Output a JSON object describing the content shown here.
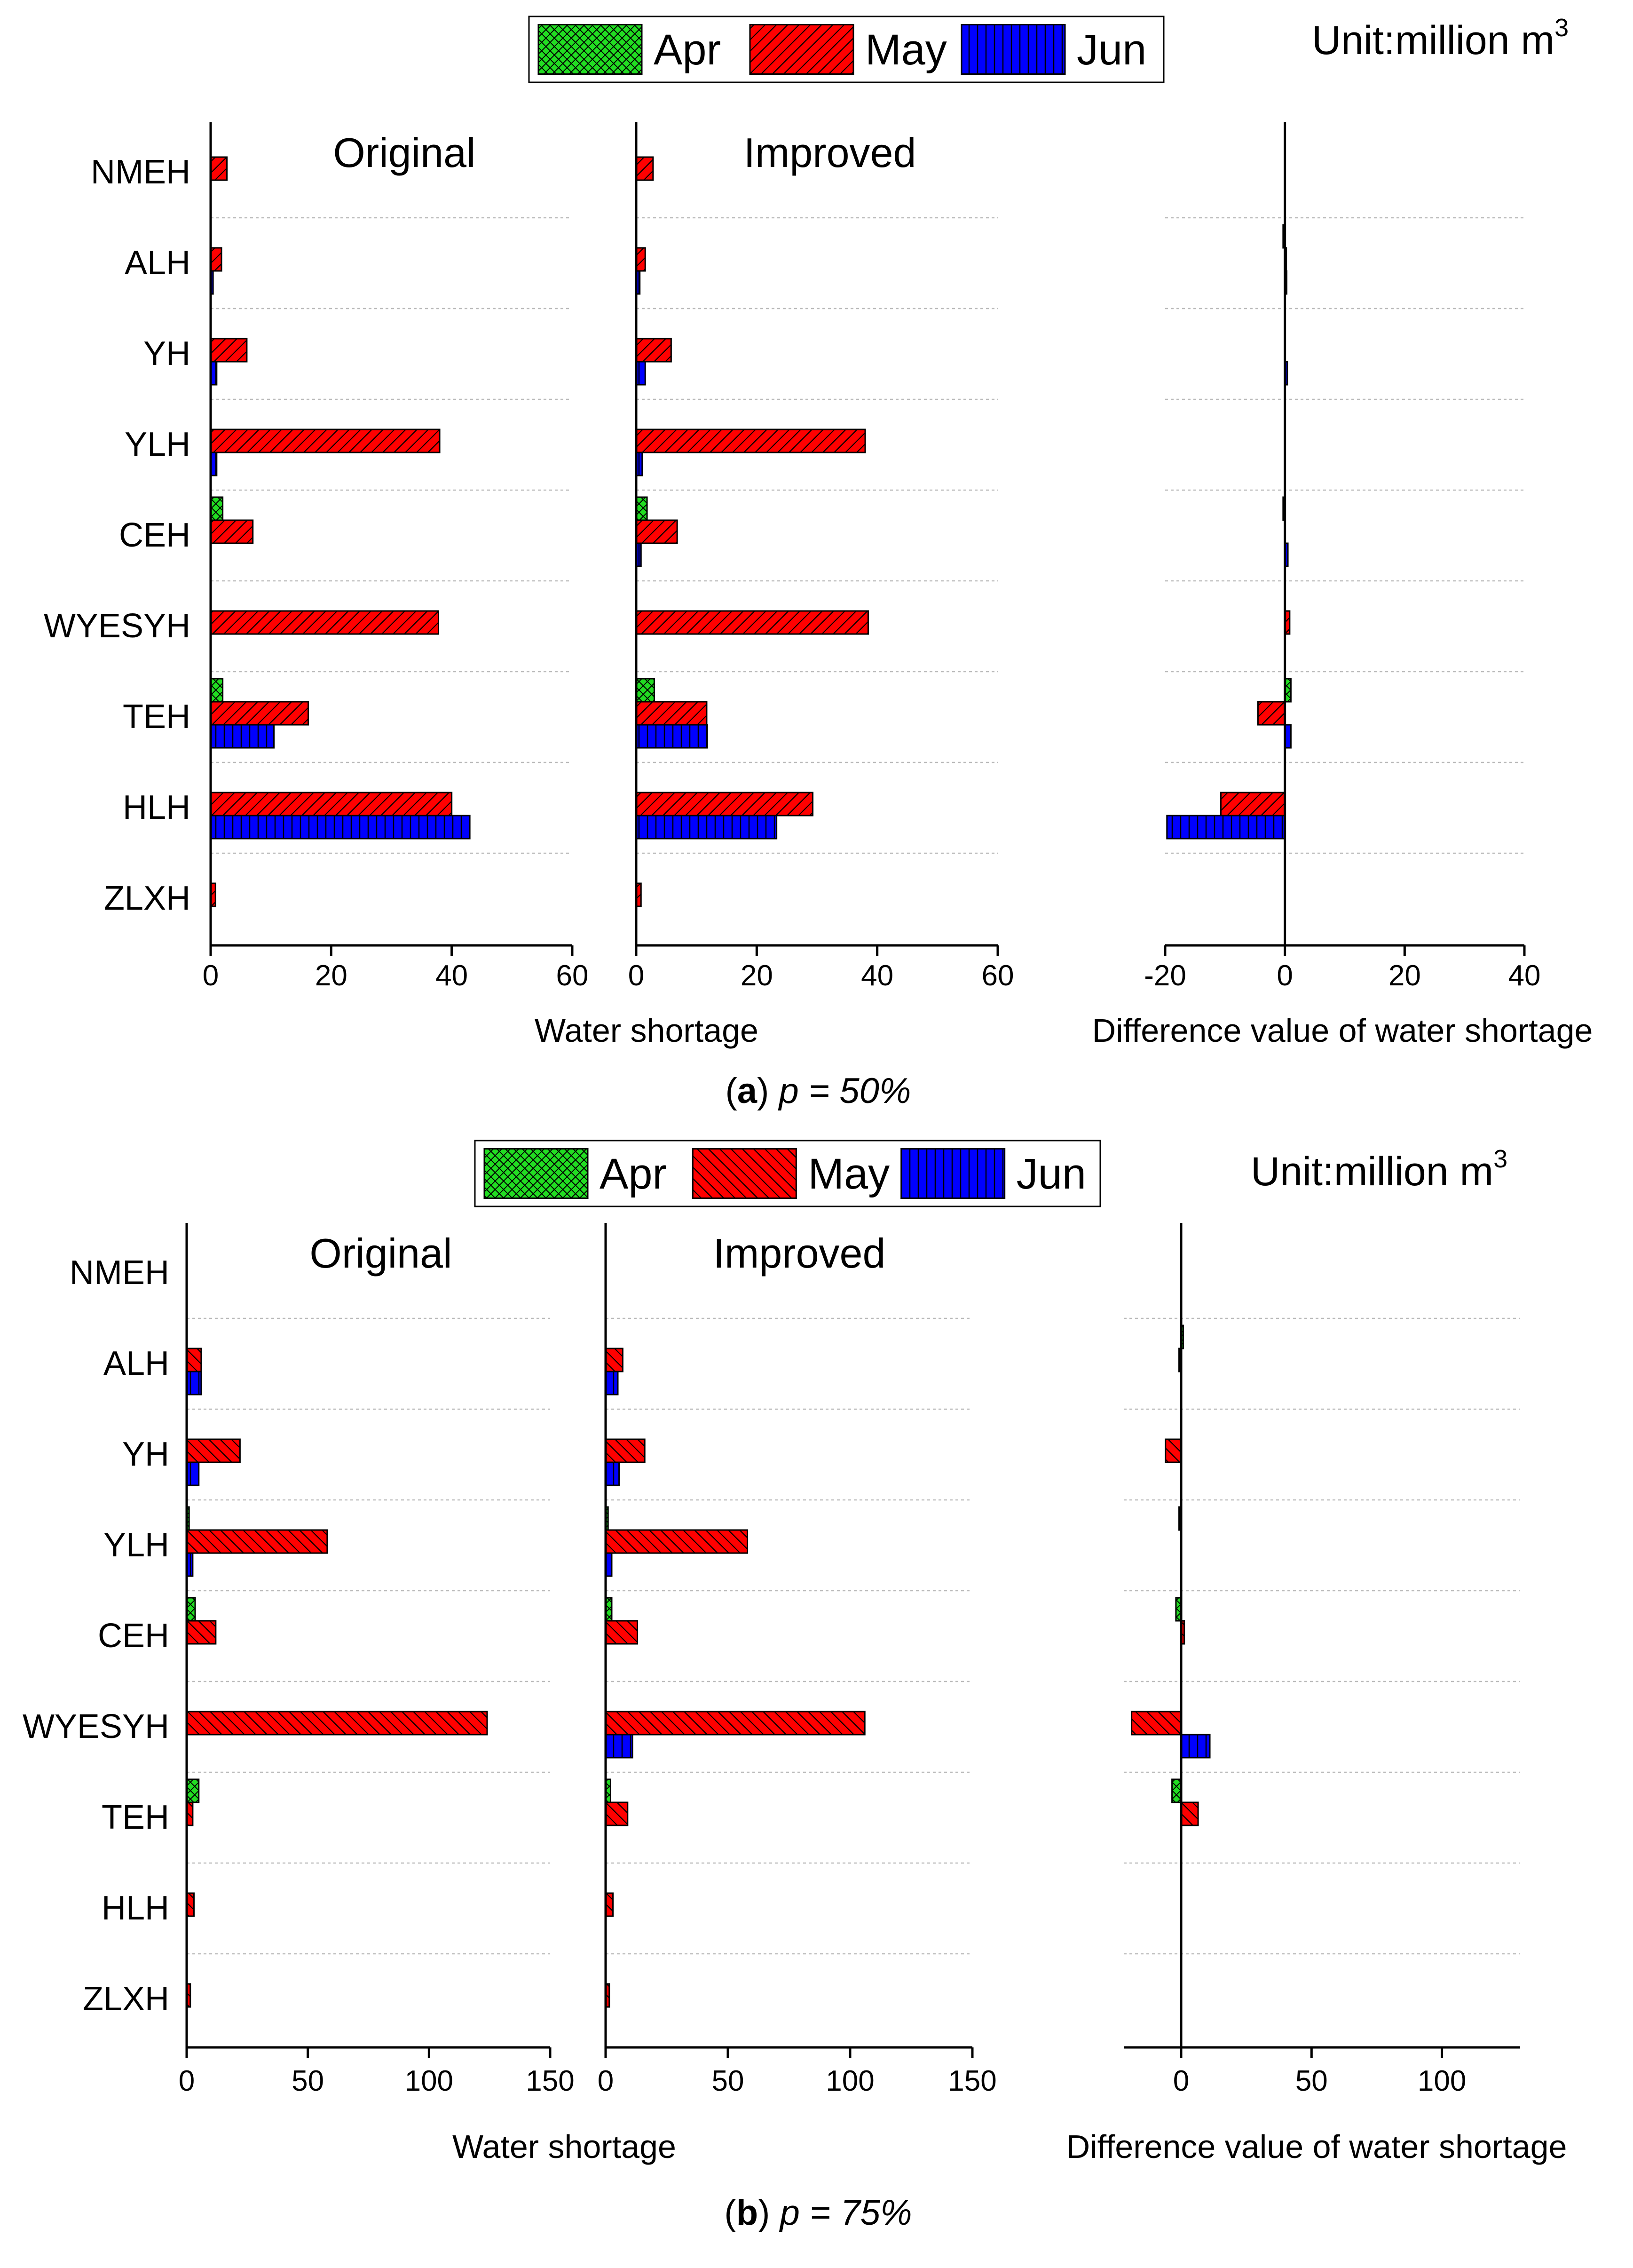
{
  "figure": {
    "unit_prefix": "Unit:million m",
    "unit_superscript": "3",
    "panel_titles": [
      "Original",
      "Improved"
    ],
    "legend": [
      {
        "label": "Apr",
        "color": "#22dd22",
        "pattern": "crosshatch"
      },
      {
        "label": "May",
        "color": "#ff0000",
        "pattern": "diagonal"
      },
      {
        "label": "Jun",
        "color": "#0000ff",
        "pattern": "vertical"
      }
    ]
  },
  "chart_data": [
    {
      "type": "bar",
      "orientation": "horizontal",
      "scenario": "p = 50%",
      "caption_letter": "a",
      "caption_rest": "p = 50%",
      "categories": [
        "NMEH",
        "ALH",
        "YH",
        "YLH",
        "CEH",
        "WYESYH",
        "TEH",
        "HLH",
        "ZLXH"
      ],
      "xlabel": "Water shortage",
      "diff_xlabel": "Difference value of water shortage",
      "xlim": [
        0,
        60
      ],
      "xticks": [
        0,
        20,
        40,
        60
      ],
      "diff_xlim": [
        -20,
        40
      ],
      "diff_xticks": [
        -20,
        0,
        20,
        40
      ],
      "original": {
        "title": "Original",
        "series": [
          {
            "name": "Apr",
            "values": [
              0,
              0,
              0,
              0,
              2,
              0,
              2,
              0,
              0
            ]
          },
          {
            "name": "May",
            "values": [
              2.7,
              1.8,
              6,
              38,
              7,
              37.8,
              16.2,
              40,
              0.8
            ]
          },
          {
            "name": "Jun",
            "values": [
              0,
              0.4,
              1,
              1,
              0,
              0,
              10.5,
              43,
              0
            ]
          }
        ]
      },
      "improved": {
        "title": "Improved",
        "series": [
          {
            "name": "Apr",
            "values": [
              0,
              0,
              0,
              0,
              1.8,
              0,
              3,
              0,
              0
            ]
          },
          {
            "name": "May",
            "values": [
              2.8,
              1.5,
              5.8,
              38,
              6.8,
              38.5,
              11.7,
              29.3,
              0.8
            ]
          },
          {
            "name": "Jun",
            "values": [
              0,
              0.6,
              1.5,
              1,
              0.8,
              0,
              11.8,
              23.3,
              0
            ]
          }
        ]
      },
      "difference": {
        "series": [
          {
            "name": "Apr",
            "values": [
              0,
              -0.3,
              0,
              0,
              -0.3,
              0,
              1,
              0,
              0
            ]
          },
          {
            "name": "May",
            "values": [
              0,
              0.2,
              0,
              0,
              0,
              0.8,
              -4.5,
              -10.7,
              0
            ]
          },
          {
            "name": "Jun",
            "values": [
              0,
              0.3,
              0.4,
              0,
              0.5,
              0,
              1,
              -19.7,
              0
            ]
          }
        ]
      }
    },
    {
      "type": "bar",
      "orientation": "horizontal",
      "scenario": "p = 75%",
      "caption_letter": "b",
      "caption_rest": "p = 75%",
      "categories": [
        "NMEH",
        "ALH",
        "YH",
        "YLH",
        "CEH",
        "WYESYH",
        "TEH",
        "HLH",
        "ZLXH"
      ],
      "xlabel": "Water shortage",
      "diff_xlabel": "Difference value of water shortage",
      "xlim": [
        0,
        150
      ],
      "xticks": [
        0,
        50,
        100,
        150
      ],
      "diff_xlim": [
        -22,
        130
      ],
      "diff_xticks": [
        0,
        50,
        100
      ],
      "original": {
        "title": "Original",
        "series": [
          {
            "name": "Apr",
            "values": [
              0,
              0,
              0,
              1,
              3.5,
              0,
              5,
              0,
              0
            ]
          },
          {
            "name": "May",
            "values": [
              0,
              6,
              22,
              58,
              12,
              124,
              2.5,
              3,
              1.5
            ]
          },
          {
            "name": "Jun",
            "values": [
              0,
              6,
              5,
              2.5,
              0,
              0,
              0,
              0,
              0
            ]
          }
        ]
      },
      "improved": {
        "title": "Improved",
        "series": [
          {
            "name": "Apr",
            "values": [
              0,
              0,
              0,
              1,
              2.5,
              0,
              2,
              0,
              0
            ]
          },
          {
            "name": "May",
            "values": [
              0,
              7,
              16,
              58,
              13,
              106,
              9,
              3,
              1.5
            ]
          },
          {
            "name": "Jun",
            "values": [
              0,
              5,
              5.5,
              2.5,
              0,
              11,
              0,
              0,
              0
            ]
          }
        ]
      },
      "difference": {
        "series": [
          {
            "name": "Apr",
            "values": [
              0,
              0.8,
              0,
              -0.8,
              -2,
              0,
              -3.5,
              0,
              0
            ]
          },
          {
            "name": "May",
            "values": [
              0,
              -0.8,
              -6,
              0,
              1.2,
              -19,
              6.5,
              0,
              0
            ]
          },
          {
            "name": "Jun",
            "values": [
              0,
              0,
              0,
              0,
              0,
              11,
              0,
              0,
              0
            ]
          }
        ]
      }
    }
  ]
}
